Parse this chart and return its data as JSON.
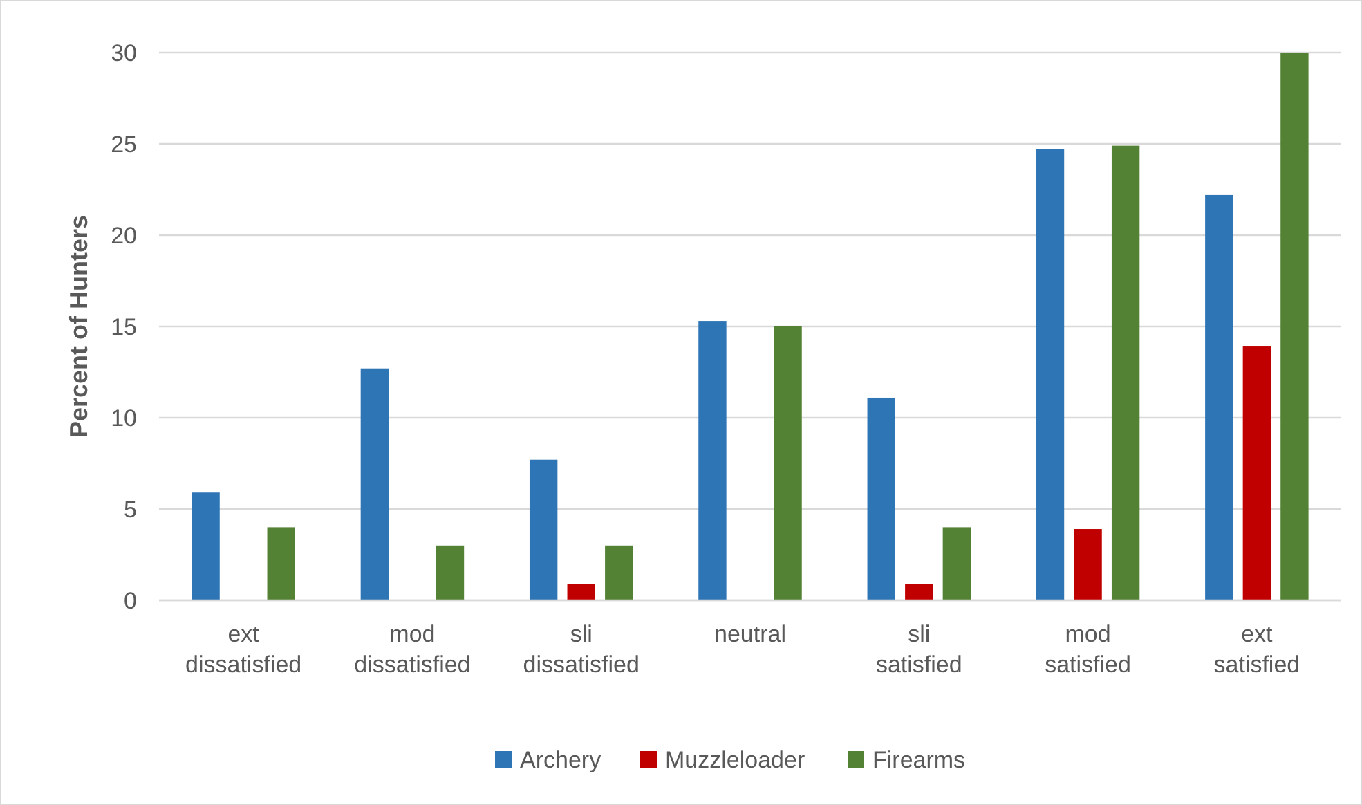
{
  "chart_data": {
    "type": "bar",
    "ylabel": "Percent of Hunters",
    "categories": [
      "ext dissatisfied",
      "mod dissatisfied",
      "sli dissatisfied",
      "neutral",
      "sli satisfied",
      "mod satisfied",
      "ext satisfied"
    ],
    "series": [
      {
        "name": "Archery",
        "color": "#2e75b6",
        "values": [
          5.9,
          12.7,
          7.7,
          15.3,
          11.1,
          24.7,
          22.2
        ]
      },
      {
        "name": "Muzzleloader",
        "color": "#c00000",
        "values": [
          0,
          0,
          0.9,
          0,
          0.9,
          3.9,
          13.9
        ]
      },
      {
        "name": "Firearms",
        "color": "#548235",
        "values": [
          4,
          3,
          3,
          15,
          4,
          24.9,
          30
        ]
      }
    ],
    "ylim": [
      0,
      30
    ],
    "yticks": [
      0,
      5,
      10,
      15,
      20,
      25,
      30
    ],
    "grid": "y",
    "legend": "bottom"
  }
}
